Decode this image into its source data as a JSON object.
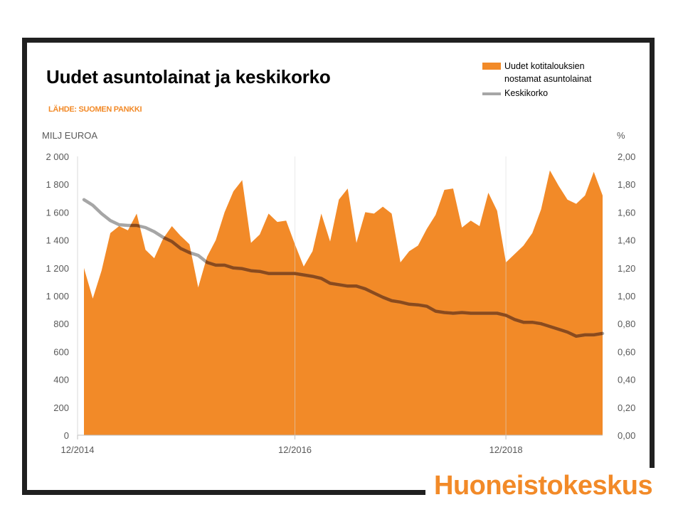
{
  "header": {
    "title": "Uudet asuntolainat ja keskikorko",
    "source": "LÄHDE: SUOMEN PANKKI"
  },
  "brand": {
    "name": "Huoneistokeskus"
  },
  "chart_data": {
    "type": "area",
    "title": "Uudet asuntolainat ja keskikorko",
    "y_left_label": "MILJ EUROA",
    "y_right_label": "%",
    "y_left_lim": [
      0,
      2000
    ],
    "y_right_lim": [
      0,
      2.0
    ],
    "y_left_ticks": [
      "0",
      "200",
      "400",
      "600",
      "800",
      "1 000",
      "1 200",
      "1 400",
      "1 600",
      "1 800",
      "2 000"
    ],
    "y_right_ticks": [
      "0,00",
      "0,20",
      "0,40",
      "0,60",
      "0,80",
      "1,00",
      "1,20",
      "1,40",
      "1,60",
      "1,80",
      "2,00"
    ],
    "x_tick_labels": [
      "12/2014",
      "12/2016",
      "12/2018"
    ],
    "x_tick_index": [
      0,
      24,
      48
    ],
    "grid": false,
    "legend_position": "top-right",
    "colors": {
      "area": "#f28a28",
      "line_light": "#a6a6a6",
      "line_dark": "#8b4a1c"
    },
    "series": [
      {
        "name": "Uudet kotitalouksien nostamat asuntolainat",
        "axis": "left",
        "type": "area",
        "values": [
          1200,
          980,
          1180,
          1450,
          1500,
          1470,
          1590,
          1330,
          1270,
          1410,
          1500,
          1430,
          1370,
          1060,
          1280,
          1400,
          1600,
          1750,
          1830,
          1380,
          1440,
          1590,
          1530,
          1540,
          1370,
          1210,
          1320,
          1590,
          1390,
          1690,
          1770,
          1380,
          1600,
          1590,
          1640,
          1590,
          1240,
          1320,
          1360,
          1480,
          1580,
          1760,
          1770,
          1490,
          1540,
          1500,
          1740,
          1610,
          1240,
          1300,
          1360,
          1450,
          1620,
          1900,
          1790,
          1690,
          1660,
          1720,
          1890,
          1720
        ]
      },
      {
        "name": "Keskikorko",
        "axis": "right",
        "type": "line",
        "values": [
          1.69,
          1.65,
          1.59,
          1.54,
          1.51,
          1.505,
          1.505,
          1.49,
          1.46,
          1.42,
          1.39,
          1.34,
          1.31,
          1.29,
          1.24,
          1.22,
          1.22,
          1.2,
          1.195,
          1.18,
          1.175,
          1.16,
          1.16,
          1.16,
          1.16,
          1.15,
          1.14,
          1.125,
          1.09,
          1.08,
          1.07,
          1.07,
          1.05,
          1.02,
          0.99,
          0.965,
          0.955,
          0.94,
          0.935,
          0.925,
          0.89,
          0.88,
          0.875,
          0.88,
          0.875,
          0.875,
          0.875,
          0.875,
          0.86,
          0.83,
          0.81,
          0.81,
          0.8,
          0.78,
          0.76,
          0.74,
          0.71,
          0.72,
          0.72,
          0.73
        ]
      }
    ]
  }
}
